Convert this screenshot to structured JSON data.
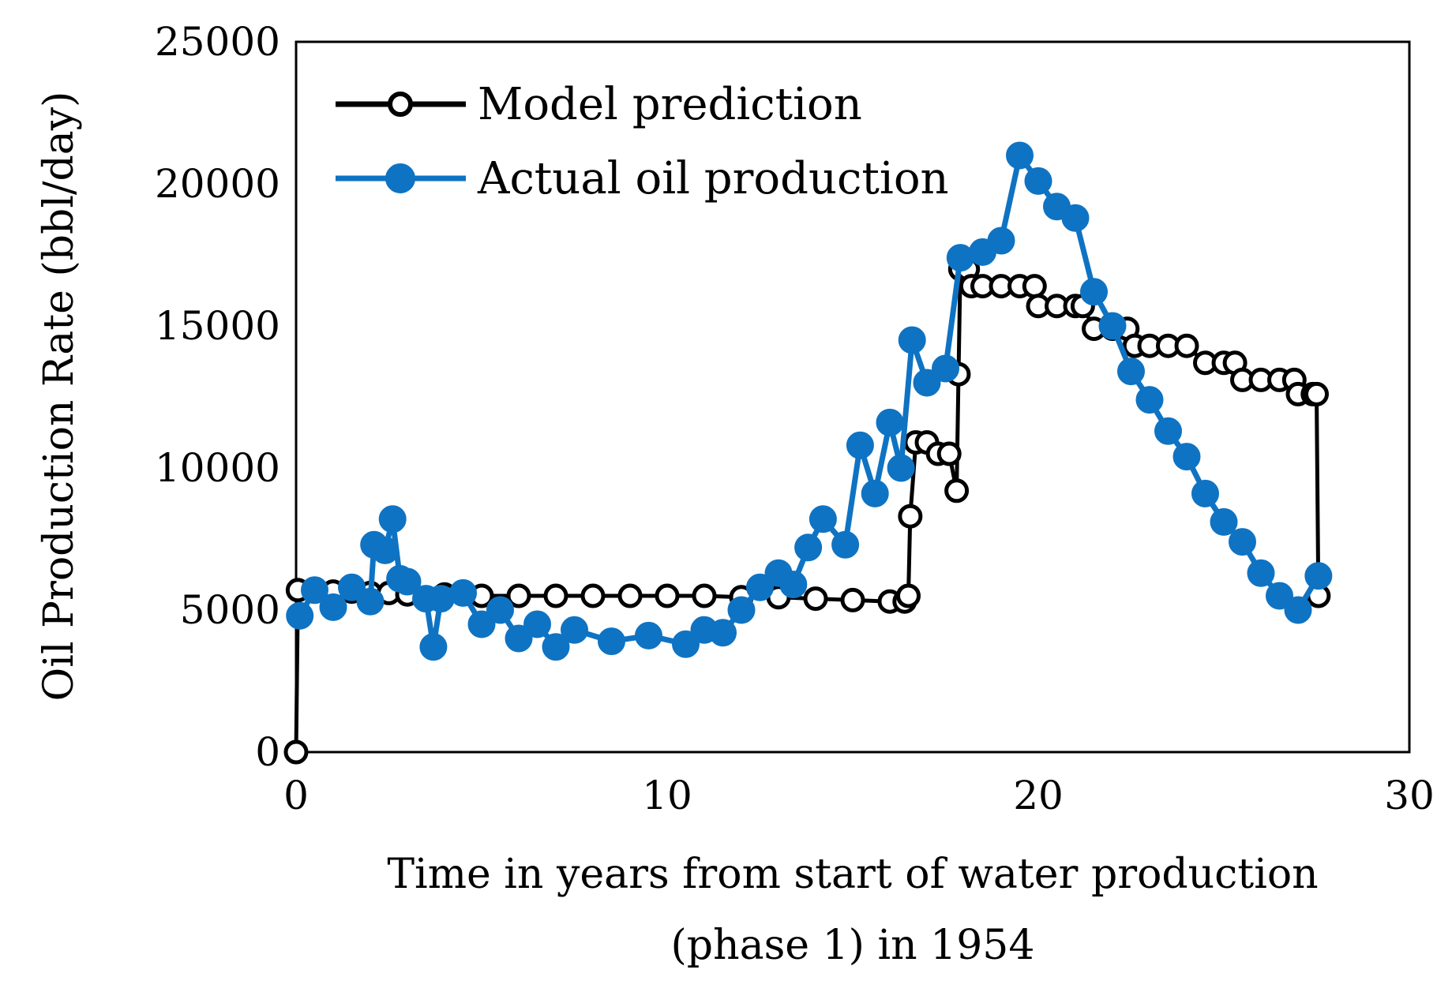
{
  "chart_data": {
    "type": "line",
    "title": "",
    "xlabel_line1": "Time in years from start of water production",
    "xlabel_line2": "(phase 1) in 1954",
    "ylabel": "Oil Production Rate (bbl/day)",
    "xlim": [
      0,
      30
    ],
    "ylim": [
      0,
      25000
    ],
    "xticks": [
      0,
      10,
      20,
      30
    ],
    "yticks": [
      0,
      5000,
      10000,
      15000,
      20000,
      25000
    ],
    "xtick_labels": [
      "0",
      "10",
      "20",
      "30"
    ],
    "ytick_labels": [
      "0",
      "5000",
      "10000",
      "15000",
      "20000",
      "25000"
    ],
    "legend_position": "top-left",
    "series": [
      {
        "name": "Model prediction",
        "color": "#000000",
        "marker": "open-circle",
        "x": [
          0,
          0.05,
          0.5,
          1,
          1.5,
          2,
          2.5,
          3,
          4,
          5,
          6,
          7,
          8,
          9,
          10,
          11,
          12,
          13,
          14,
          15,
          16,
          16.4,
          16.5,
          16.55,
          16.7,
          17,
          17.3,
          17.6,
          17.8,
          17.85,
          17.9,
          18.1,
          18.2,
          18.5,
          19,
          19.5,
          19.9,
          20,
          20.5,
          21,
          21.2,
          21.5,
          22,
          22.4,
          22.6,
          23,
          23.5,
          24,
          24.5,
          25,
          25.3,
          25.5,
          26,
          26.5,
          26.9,
          27,
          27.4,
          27.5,
          27.55
        ],
        "values": [
          0,
          5700,
          5700,
          5650,
          5650,
          5600,
          5600,
          5550,
          5550,
          5500,
          5500,
          5500,
          5500,
          5500,
          5500,
          5500,
          5450,
          5450,
          5400,
          5350,
          5300,
          5300,
          5500,
          8300,
          10900,
          10900,
          10500,
          10500,
          9200,
          13300,
          17000,
          17000,
          16400,
          16400,
          16400,
          16400,
          16400,
          15700,
          15700,
          15700,
          15700,
          14900,
          14900,
          14900,
          14300,
          14300,
          14300,
          14300,
          13700,
          13700,
          13700,
          13100,
          13100,
          13100,
          13100,
          12600,
          12600,
          12600,
          5500
        ]
      },
      {
        "name": "Actual oil production",
        "color": "#0F73C3",
        "marker": "filled-circle",
        "x": [
          0.1,
          0.5,
          1,
          1.5,
          2,
          2.1,
          2.4,
          2.6,
          2.8,
          3,
          3.5,
          3.7,
          3.9,
          4.5,
          5,
          5.5,
          6,
          6.5,
          7,
          7.5,
          8.5,
          9.5,
          10.5,
          11,
          11.5,
          12,
          12.5,
          13,
          13.4,
          13.8,
          14.2,
          14.8,
          15.2,
          15.6,
          16,
          16.3,
          16.6,
          17,
          17.5,
          17.9,
          18.5,
          19,
          19.5,
          20,
          20.5,
          21,
          21.5,
          22,
          22.5,
          23,
          23.5,
          24,
          24.5,
          25,
          25.5,
          26,
          26.5,
          27,
          27.55
        ],
        "values": [
          4800,
          5700,
          5100,
          5800,
          5300,
          7300,
          7100,
          8200,
          6100,
          6000,
          5400,
          3700,
          5400,
          5600,
          4500,
          5000,
          4000,
          4500,
          3700,
          4300,
          3900,
          4100,
          3800,
          4300,
          4200,
          5000,
          5800,
          6300,
          5900,
          7200,
          8200,
          7300,
          10800,
          9100,
          11600,
          10000,
          14500,
          13000,
          13500,
          17400,
          17600,
          18000,
          21000,
          20100,
          19200,
          18800,
          16200,
          15000,
          13400,
          12400,
          11300,
          10400,
          9100,
          8100,
          7400,
          6300,
          5500,
          5000,
          6200
        ]
      }
    ]
  }
}
